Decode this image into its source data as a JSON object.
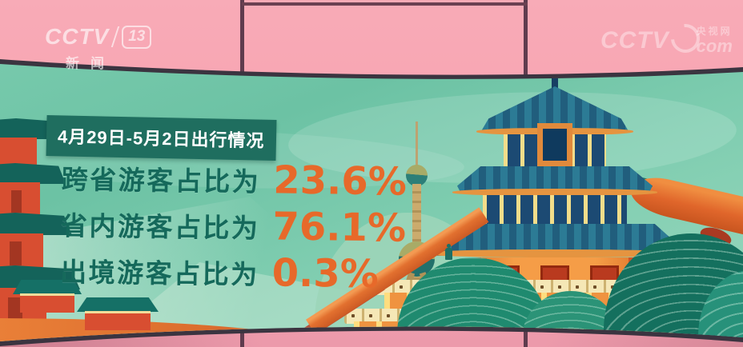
{
  "channel_bug": {
    "brand": "CCTV",
    "number": "13",
    "name": "新闻"
  },
  "watermark": {
    "brand": "CCTV",
    "site_cn": "央视网",
    "site_suffix": "com"
  },
  "panel": {
    "title": "4月29日-5月2日出行情况",
    "stats": [
      {
        "label": "跨省游客占比为",
        "value": "23.6%"
      },
      {
        "label": "省内游客占比为",
        "value": "76.1%"
      },
      {
        "label": "出境游客占比为",
        "value": "0.3%"
      }
    ]
  },
  "chart_data": {
    "type": "table",
    "title": "4月29日-5月2日出行情况",
    "categories": [
      "跨省游客占比",
      "省内游客占比",
      "出境游客占比"
    ],
    "values": [
      23.6,
      76.1,
      0.3
    ],
    "unit": "%",
    "notes": "Infographic on a curved studio video wall; values shown as orange numerals beside dark-teal labels"
  },
  "illustration": {
    "landmarks": [
      "pagoda-illustration",
      "oriental-pearl-tower-illustration",
      "temple-of-heaven-illustration",
      "great-wall-balustrade-illustration",
      "mountains-illustration"
    ]
  },
  "colors": {
    "accent_orange": "#E7692A",
    "title_box_green": "#1F6E5F",
    "stat_text_teal": "#15695B",
    "sky_teal": "#6FC5A8",
    "studio_wall_pink": "#F6A5B2",
    "seam_dark": "#5F3C4E"
  }
}
